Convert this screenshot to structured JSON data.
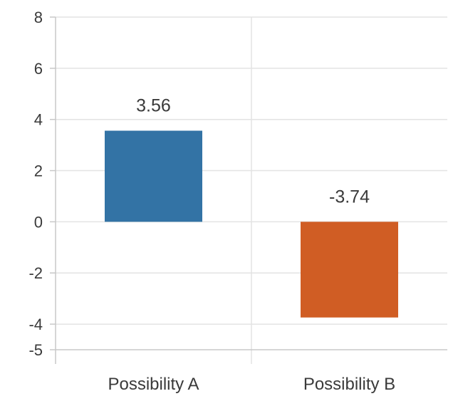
{
  "chart_data": {
    "type": "bar",
    "categories": [
      "Possibility A",
      "Possibility B"
    ],
    "values": [
      3.56,
      -3.74
    ],
    "value_labels": [
      "3.56",
      "-3.74"
    ],
    "colors": [
      "#3373a5",
      "#d05d24"
    ],
    "ylim": [
      -5,
      8
    ],
    "yticks": [
      8,
      6,
      4,
      2,
      0,
      -2,
      -4,
      -5
    ],
    "ytick_labels": [
      "8",
      "6",
      "4",
      "2",
      "0",
      "-2",
      "-4",
      "-5"
    ],
    "grid": true
  }
}
